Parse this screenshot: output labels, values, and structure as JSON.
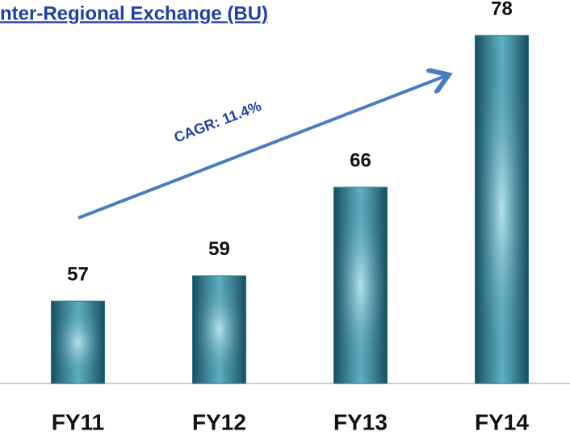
{
  "chart_data": {
    "type": "bar",
    "title": "nter-Regional Exchange (BU)",
    "annotation": "CAGR: 11.4%",
    "categories": [
      "FY11",
      "FY12",
      "FY13",
      "FY14"
    ],
    "values": [
      57,
      59,
      66,
      78
    ],
    "color": "#2a7386",
    "ylim": [
      50.5,
      80.8
    ]
  }
}
